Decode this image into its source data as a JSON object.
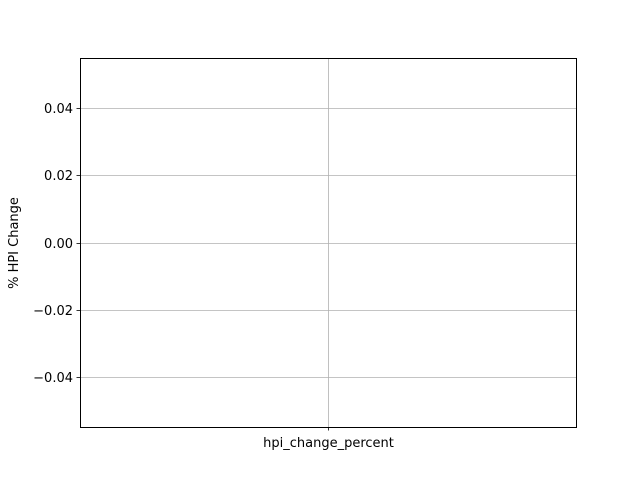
{
  "chart_data": {
    "type": "box",
    "categories": [
      "hpi_change_percent"
    ],
    "series": [
      {
        "values": []
      }
    ],
    "title": "",
    "xlabel": "",
    "ylabel": "% HPI Change",
    "ylim": [
      -0.055,
      0.055
    ],
    "yticks": [
      -0.04,
      -0.02,
      0.0,
      0.02,
      0.04
    ],
    "ytick_labels": [
      "−0.04",
      "−0.02",
      "0.00",
      "0.02",
      "0.04"
    ],
    "grid": true,
    "colors": {
      "grid": "#b0b0b0",
      "axes": "#000000",
      "background": "#ffffff"
    }
  }
}
